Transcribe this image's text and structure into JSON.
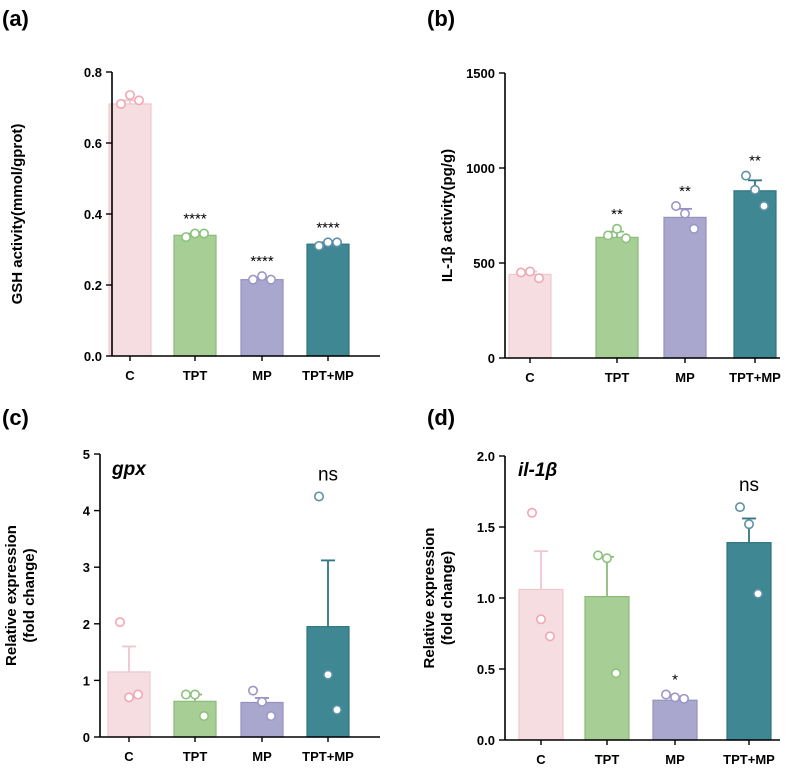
{
  "chart_data": [
    {
      "panel": "(a)",
      "type": "bar",
      "title": "",
      "ylabel": "GSH activity(mmol/gprot)",
      "ylim": [
        0,
        0.8
      ],
      "yticks": [
        "0.0",
        "0.2",
        "0.4",
        "0.6",
        "0.8"
      ],
      "ytick_values": [
        0,
        0.2,
        0.4,
        0.6,
        0.8
      ],
      "categories": [
        "C",
        "TPT",
        "MP",
        "TPT+MP"
      ],
      "values": [
        0.71,
        0.34,
        0.215,
        0.315
      ],
      "errors": [
        0.01,
        0.005,
        0.005,
        0.005
      ],
      "points": [
        [
          0.71,
          0.735,
          0.72
        ],
        [
          0.335,
          0.345,
          0.345
        ],
        [
          0.215,
          0.225,
          0.215
        ],
        [
          0.31,
          0.32,
          0.32
        ]
      ],
      "significance": [
        "",
        "****",
        "****",
        "****"
      ]
    },
    {
      "panel": "(b)",
      "type": "bar",
      "title": "",
      "ylabel": "IL-1β activity(pg/g)",
      "ylim": [
        0,
        1500
      ],
      "yticks": [
        "0",
        "500",
        "1000",
        "1500"
      ],
      "ytick_values": [
        0,
        500,
        1000,
        1500
      ],
      "categories": [
        "C",
        "TPT",
        "MP",
        "TPT+MP"
      ],
      "values": [
        440,
        635,
        740,
        880
      ],
      "errors": [
        15,
        30,
        45,
        55
      ],
      "points": [
        [
          450,
          455,
          420
        ],
        [
          645,
          680,
          630
        ],
        [
          800,
          760,
          680
        ],
        [
          960,
          885,
          800
        ]
      ],
      "significance": [
        "",
        "**",
        "**",
        "**"
      ]
    },
    {
      "panel": "(c)",
      "type": "bar",
      "title": "gpx",
      "ylabel": "Relative expression (fold change)",
      "ylabel_lines": [
        "Relative expression",
        "(fold change)"
      ],
      "ylim": [
        0,
        5
      ],
      "yticks": [
        "0",
        "1",
        "2",
        "3",
        "4",
        "5"
      ],
      "ytick_values": [
        0,
        1,
        2,
        3,
        4,
        5
      ],
      "categories": [
        "C",
        "TPT",
        "MP",
        "TPT+MP"
      ],
      "values": [
        1.15,
        0.63,
        0.61,
        1.95
      ],
      "errors": [
        0.45,
        0.12,
        0.08,
        1.17
      ],
      "points": [
        [
          2.03,
          0.7,
          0.75
        ],
        [
          0.75,
          0.75,
          0.37
        ],
        [
          0.82,
          0.62,
          0.37
        ],
        [
          4.25,
          1.1,
          0.48
        ]
      ],
      "significance": [
        "",
        "",
        "",
        "ns"
      ]
    },
    {
      "panel": "(d)",
      "type": "bar",
      "title": "il-1β",
      "ylabel": "Relative expression (fold change)",
      "ylabel_lines": [
        "Relative expression",
        "(fold change)"
      ],
      "ylim": [
        0,
        2.0
      ],
      "yticks": [
        "0.0",
        "0.5",
        "1.0",
        "1.5",
        "2.0"
      ],
      "ytick_values": [
        0,
        0.5,
        1.0,
        1.5,
        2.0
      ],
      "categories": [
        "C",
        "TPT",
        "MP",
        "TPT+MP"
      ],
      "values": [
        1.06,
        1.01,
        0.28,
        1.39
      ],
      "errors": [
        0.27,
        0.28,
        0.02,
        0.17
      ],
      "points": [
        [
          1.6,
          0.85,
          0.73
        ],
        [
          1.3,
          1.28,
          0.47
        ],
        [
          0.32,
          0.3,
          0.29
        ],
        [
          1.64,
          1.52,
          1.03
        ]
      ],
      "significance": [
        "",
        "",
        "*",
        "ns"
      ]
    }
  ],
  "colors": {
    "bar_fill": [
      "#f6dde1",
      "#a7cf95",
      "#aaa7cf",
      "#3f8792"
    ],
    "bar_edge": [
      "#efc7cd",
      "#8dbb7a",
      "#9490c0",
      "#2f7680"
    ],
    "point_stroke": [
      "#f2a7b3",
      "#8bc27b",
      "#9a96c8",
      "#5d90a8"
    ]
  }
}
